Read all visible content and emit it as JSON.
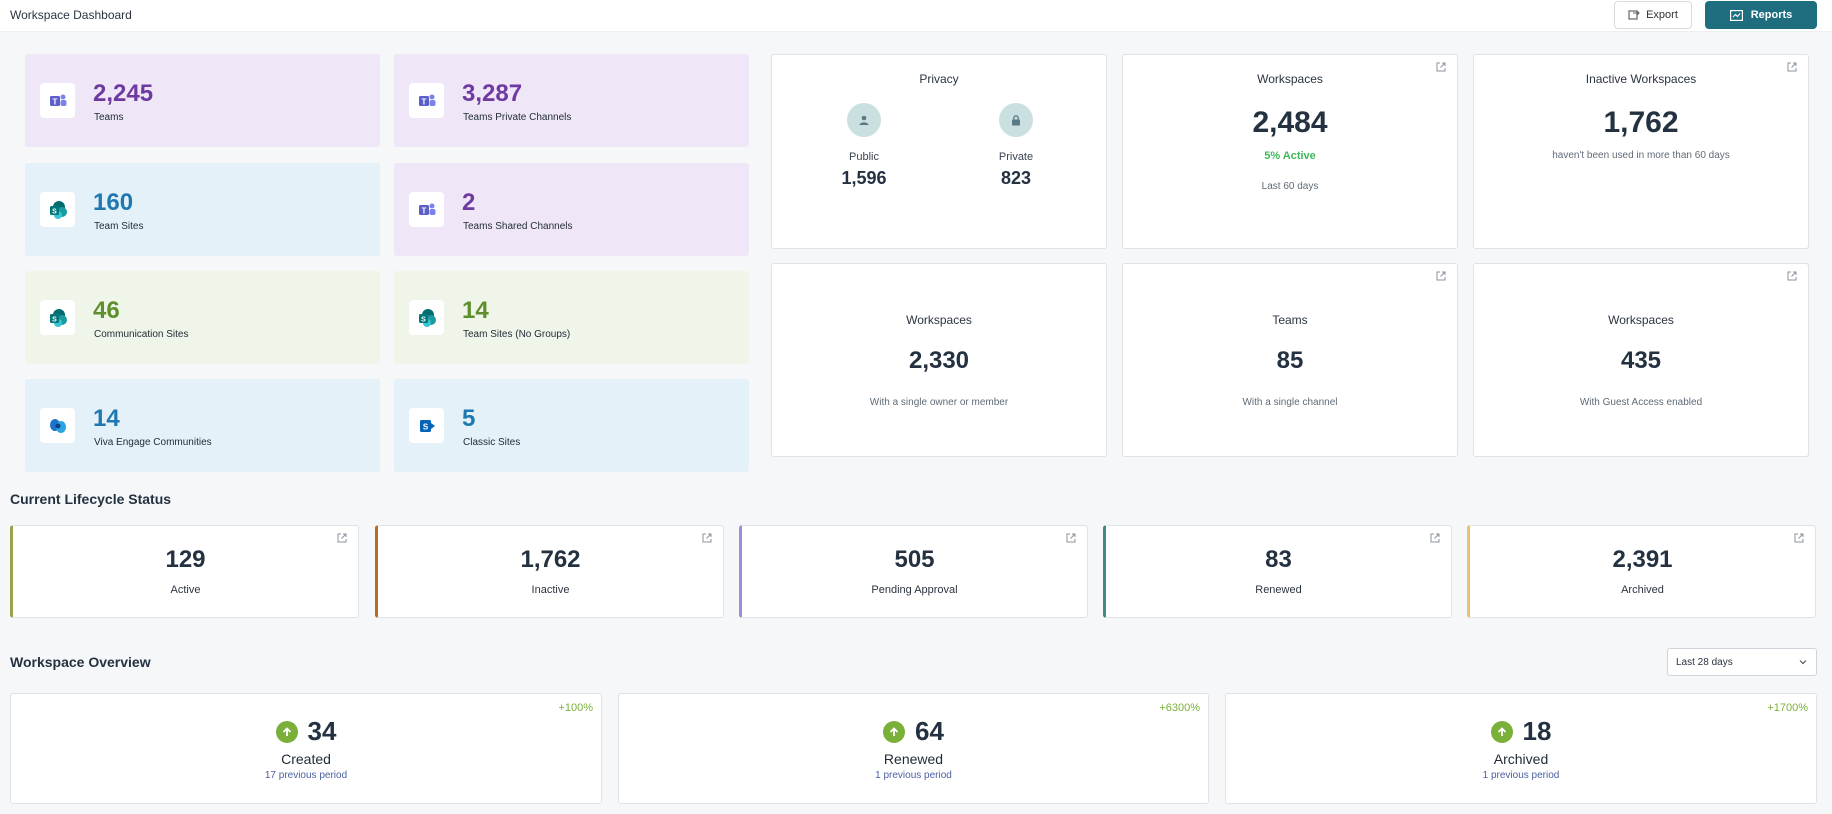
{
  "header": {
    "title": "Workspace Dashboard",
    "export_label": "Export",
    "reports_label": "Reports"
  },
  "tiles": [
    {
      "value": "2,245",
      "label": "Teams",
      "icon": "teams-icon",
      "color": "purple"
    },
    {
      "value": "3,287",
      "label": "Teams Private Channels",
      "icon": "teams-icon",
      "color": "purple"
    },
    {
      "value": "160",
      "label": "Team Sites",
      "icon": "sharepoint-icon",
      "color": "blue"
    },
    {
      "value": "2",
      "label": "Teams Shared Channels",
      "icon": "teams-icon",
      "color": "purple"
    },
    {
      "value": "46",
      "label": "Communication Sites",
      "icon": "sharepoint-icon",
      "color": "green"
    },
    {
      "value": "14",
      "label": "Team Sites (No Groups)",
      "icon": "sharepoint-icon",
      "color": "green"
    },
    {
      "value": "14",
      "label": "Viva Engage Communities",
      "icon": "viva-engage-icon",
      "color": "blue"
    },
    {
      "value": "5",
      "label": "Classic Sites",
      "icon": "sharepoint-classic-icon",
      "color": "blue"
    }
  ],
  "privacy": {
    "title": "Privacy",
    "public_label": "Public",
    "public_value": "1,596",
    "private_label": "Private",
    "private_value": "823"
  },
  "workspaces_active": {
    "title": "Workspaces",
    "value": "2,484",
    "active": "5% Active",
    "period": "Last 60 days"
  },
  "inactive": {
    "title": "Inactive Workspaces",
    "value": "1,762",
    "sub": "haven't been used in more than 60 days"
  },
  "single_owner": {
    "title": "Workspaces",
    "value": "2,330",
    "sub": "With a single owner or member"
  },
  "single_channel": {
    "title": "Teams",
    "value": "85",
    "sub": "With a single channel"
  },
  "guest": {
    "title": "Workspaces",
    "value": "435",
    "sub": "With Guest Access enabled"
  },
  "lifecycle": {
    "title": "Current Lifecycle Status",
    "items": [
      {
        "value": "129",
        "label": "Active",
        "color": "#9aa24a"
      },
      {
        "value": "1,762",
        "label": "Inactive",
        "color": "#c0671d"
      },
      {
        "value": "505",
        "label": "Pending Approval",
        "color": "#a38ad6"
      },
      {
        "value": "83",
        "label": "Renewed",
        "color": "#3f8c86"
      },
      {
        "value": "2,391",
        "label": "Archived",
        "color": "#e7c46e"
      }
    ]
  },
  "overview": {
    "title": "Workspace Overview",
    "range": "Last 28 days",
    "items": [
      {
        "value": "34",
        "label": "Created",
        "prev": "17 previous period",
        "delta": "+100%"
      },
      {
        "value": "64",
        "label": "Renewed",
        "prev": "1 previous period",
        "delta": "+6300%"
      },
      {
        "value": "18",
        "label": "Archived",
        "prev": "1 previous period",
        "delta": "+1700%"
      }
    ]
  }
}
